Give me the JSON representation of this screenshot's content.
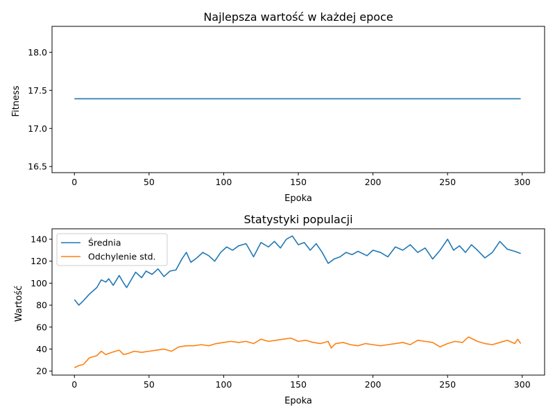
{
  "chart_data": [
    {
      "type": "line",
      "title": "Najlepsza wartość w każdej epoce",
      "xlabel": "Epoka",
      "ylabel": "Fitness",
      "xlim": [
        -15,
        315
      ],
      "ylim": [
        16.42,
        18.34
      ],
      "xticks": [
        0,
        50,
        100,
        150,
        200,
        250,
        300
      ],
      "yticks": [
        16.5,
        17.0,
        17.5,
        18.0
      ],
      "grid": false,
      "series": [
        {
          "name": "",
          "color": "#1f77b4",
          "x": [
            0,
            299
          ],
          "values": [
            17.39,
            17.39
          ]
        }
      ]
    },
    {
      "type": "line",
      "title": "Statystyki populacji",
      "xlabel": "Epoka",
      "ylabel": "Wartość",
      "xlim": [
        -15,
        315
      ],
      "ylim": [
        16.3,
        149.5
      ],
      "xticks": [
        0,
        50,
        100,
        150,
        200,
        250,
        300
      ],
      "yticks": [
        20,
        40,
        60,
        80,
        100,
        120,
        140
      ],
      "grid": false,
      "legend": "top-left",
      "series": [
        {
          "name": "Średnia",
          "color": "#1f77b4",
          "x": [
            0,
            3,
            6,
            10,
            15,
            18,
            21,
            23,
            26,
            30,
            33,
            35,
            38,
            41,
            45,
            48,
            52,
            56,
            60,
            64,
            68,
            72,
            75,
            78,
            82,
            86,
            90,
            94,
            98,
            102,
            106,
            110,
            115,
            120,
            125,
            130,
            134,
            138,
            142,
            146,
            150,
            154,
            158,
            162,
            166,
            170,
            174,
            178,
            182,
            186,
            190,
            196,
            200,
            205,
            210,
            215,
            220,
            225,
            230,
            235,
            240,
            245,
            250,
            254,
            258,
            262,
            266,
            270,
            275,
            280,
            285,
            290,
            295,
            299
          ],
          "values": [
            85,
            80,
            84,
            90,
            96,
            103,
            101,
            104,
            98,
            107,
            100,
            96,
            103,
            110,
            105,
            111,
            108,
            113,
            106,
            111,
            112,
            122,
            128,
            119,
            123,
            128,
            125,
            120,
            128,
            133,
            130,
            134,
            136,
            124,
            137,
            133,
            138,
            132,
            140,
            143,
            135,
            137,
            130,
            136,
            128,
            118,
            122,
            124,
            128,
            126,
            129,
            125,
            130,
            128,
            124,
            133,
            130,
            135,
            128,
            132,
            122,
            130,
            140,
            130,
            134,
            128,
            135,
            130,
            123,
            128,
            138,
            131,
            129,
            127
          ]
        },
        {
          "name": "Odchylenie std.",
          "color": "#ff7f0e",
          "x": [
            0,
            3,
            6,
            10,
            15,
            18,
            21,
            25,
            30,
            33,
            36,
            40,
            45,
            50,
            55,
            60,
            65,
            70,
            75,
            80,
            85,
            90,
            95,
            100,
            105,
            110,
            115,
            120,
            125,
            130,
            135,
            140,
            145,
            150,
            155,
            160,
            165,
            170,
            172,
            175,
            180,
            185,
            190,
            195,
            200,
            205,
            210,
            215,
            220,
            225,
            230,
            235,
            240,
            245,
            250,
            255,
            260,
            264,
            270,
            275,
            280,
            285,
            290,
            295,
            297,
            299
          ],
          "values": [
            23,
            25,
            26,
            32,
            34,
            38,
            35,
            37,
            39,
            35,
            36,
            38,
            37,
            38,
            39,
            40,
            38,
            42,
            43,
            43,
            44,
            43,
            45,
            46,
            47,
            46,
            47,
            45,
            49,
            47,
            48,
            49,
            50,
            47,
            48,
            46,
            45,
            47,
            41,
            45,
            46,
            44,
            43,
            45,
            44,
            43,
            44,
            45,
            46,
            44,
            48,
            47,
            46,
            42,
            45,
            47,
            46,
            51,
            47,
            45,
            44,
            46,
            48,
            45,
            49,
            45
          ]
        }
      ]
    }
  ]
}
